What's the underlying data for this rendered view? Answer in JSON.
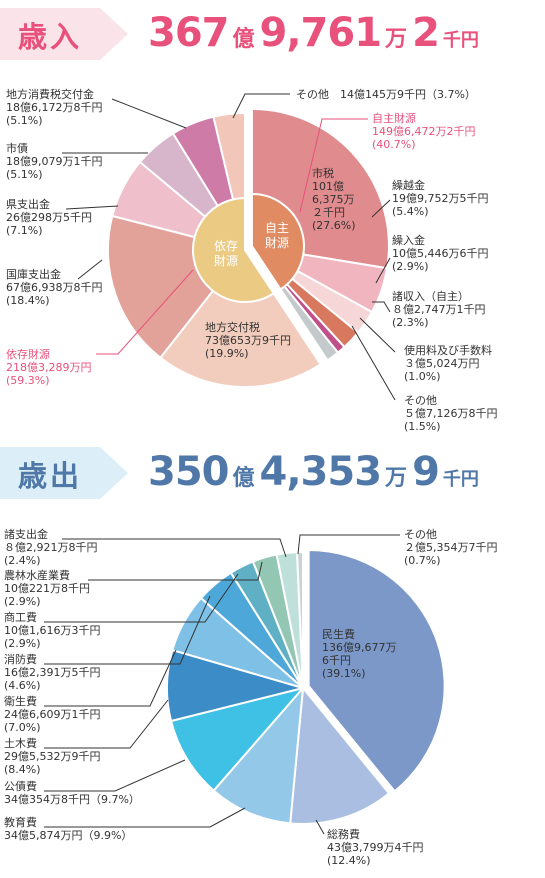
{
  "colors": {
    "revenue_accent": "#e8517b",
    "revenue_tag_bg": "#fbe3ea",
    "expenditure_accent": "#4f78a8",
    "expenditure_tag_bg": "#dceff8"
  },
  "revenue": {
    "tag": "歳入",
    "total": {
      "n1": "367",
      "u1": "億",
      "n2": "9,761",
      "u2": "万",
      "n3": "2",
      "u3": "千円"
    }
  },
  "expenditure": {
    "tag": "歳出",
    "total": {
      "n1": "350",
      "u1": "億",
      "n2": "4,353",
      "u2": "万",
      "n3": "9",
      "u3": "千円"
    }
  },
  "chart_data": [
    {
      "type": "pie",
      "name": "歳入",
      "unit": "%",
      "slices": [
        {
          "label": "市税",
          "value": 27.6,
          "amount": "101億6,375万2千円",
          "group": "自主財源",
          "color": "#e08b8e",
          "lines": [
            "市税",
            "101億",
            "6,375万",
            "２千円",
            "(27.6%)"
          ]
        },
        {
          "label": "繰越金",
          "value": 5.4,
          "amount": "19億9,752万5千円",
          "group": "自主財源",
          "color": "#f0b5be",
          "lines": [
            "繰越金",
            "19億9,752万5千円",
            "(5.4%)"
          ]
        },
        {
          "label": "繰入金",
          "value": 2.9,
          "amount": "10億5,446万6千円",
          "group": "自主財源",
          "color": "#f7d6d8",
          "lines": [
            "繰入金",
            "10億5,446万6千円",
            "(2.9%)"
          ]
        },
        {
          "label": "諸収入（自主）",
          "value": 2.3,
          "amount": "8億2,747万1千円",
          "group": "自主財源",
          "color": "#d8795f",
          "lines": [
            "諸収入（自主）",
            "８億2,747万1千円",
            "(2.3%)"
          ]
        },
        {
          "label": "使用料及び手数料",
          "value": 1.0,
          "amount": "3億5,024万円",
          "group": "自主財源",
          "color": "#c0508a",
          "lines": [
            "使用料及び手数料",
            "３億5,024万円",
            "(1.0%)"
          ]
        },
        {
          "label": "その他",
          "value": 1.5,
          "amount": "5億7,126万8千円",
          "group": "自主財源",
          "color": "#c4c9cc",
          "lines": [
            "その他",
            "５億7,126万8千円",
            "(1.5%)"
          ]
        },
        {
          "label": "地方交付税",
          "value": 19.9,
          "amount": "73億653万9千円",
          "group": "依存財源",
          "color": "#f2cdbd",
          "lines": [
            "地方交付税",
            "73億653万9千円",
            "(19.9%)"
          ]
        },
        {
          "label": "国庫支出金",
          "value": 18.4,
          "amount": "67億6,938万8千円",
          "group": "依存財源",
          "color": "#e2a29a",
          "lines": [
            "国庫支出金",
            "67億6,938万8千円",
            "(18.4%)"
          ]
        },
        {
          "label": "県支出金",
          "value": 7.1,
          "amount": "26億298万5千円",
          "group": "依存財源",
          "color": "#efbfcb",
          "lines": [
            "県支出金",
            "26億298万5千円",
            "(7.1%)"
          ]
        },
        {
          "label": "市債",
          "value": 5.1,
          "amount": "18億9,079万1千円",
          "group": "依存財源",
          "color": "#d7b6cb",
          "lines": [
            "市債",
            "18億9,079万1千円",
            "(5.1%)"
          ]
        },
        {
          "label": "地方消費税交付金",
          "value": 5.1,
          "amount": "18億6,172万8千円",
          "group": "依存財源",
          "color": "#cf7ba8",
          "lines": [
            "地方消費税交付金",
            "18億6,172万8千円",
            "(5.1%)"
          ]
        },
        {
          "label": "その他",
          "value": 3.7,
          "amount": "14億145万9千円",
          "group": "依存財源",
          "color": "#f2c6b9",
          "lines": [
            "その他　14億145万9千円（3.7%）"
          ]
        }
      ],
      "groups": [
        {
          "name": "自主財源",
          "lines": [
            "自主財源",
            "149億6,472万2千円",
            "(40.7%)"
          ],
          "inner": [
            "自主",
            "財源"
          ],
          "color": "#e08b62"
        },
        {
          "name": "依存財源",
          "lines": [
            "依存財源",
            "218億3,289万円",
            "(59.3%)"
          ],
          "inner": [
            "依存",
            "財源"
          ],
          "color": "#ebcb84"
        }
      ]
    },
    {
      "type": "pie",
      "name": "歳出",
      "unit": "%",
      "slices": [
        {
          "label": "民生費",
          "value": 39.1,
          "amount": "136億9,677万6千円",
          "color": "#7b98c8",
          "lines": [
            "民生費",
            "136億9,677万",
            "6千円",
            "(39.1%)"
          ]
        },
        {
          "label": "総務費",
          "value": 12.4,
          "amount": "43億3,799万4千円",
          "color": "#a9bee0",
          "lines": [
            "総務費",
            "43億3,799万4千円",
            "(12.4%)"
          ]
        },
        {
          "label": "教育費",
          "value": 9.9,
          "amount": "34億5,874万円",
          "color": "#93c8e8",
          "lines": [
            "教育費",
            "34億5,874万円（9.9%）"
          ]
        },
        {
          "label": "公債費",
          "value": 9.7,
          "amount": "34億354万8千円",
          "color": "#3fc0e5",
          "lines": [
            "公債費",
            "34億354万8千円（9.7%）"
          ]
        },
        {
          "label": "土木費",
          "value": 8.4,
          "amount": "29億5,532万9千円",
          "color": "#3c8cc8",
          "lines": [
            "土木費",
            "29億5,532万9千円",
            "(8.4%)"
          ]
        },
        {
          "label": "衛生費",
          "value": 7.0,
          "amount": "24億6,609万1千円",
          "color": "#7ec0e6",
          "lines": [
            "衛生費",
            "24億6,609万1千円",
            "(7.0%)"
          ]
        },
        {
          "label": "消防費",
          "value": 4.6,
          "amount": "16億2,391万5千円",
          "color": "#4da7d9",
          "lines": [
            "消防費",
            "16億2,391万5千円",
            "(4.6%)"
          ]
        },
        {
          "label": "商工費",
          "value": 2.9,
          "amount": "10億1,616万3千円",
          "color": "#5fb0c5",
          "lines": [
            "商工費",
            "10億1,616万3千円",
            "(2.9%)"
          ]
        },
        {
          "label": "農林水産業費",
          "value": 2.9,
          "amount": "10億221万8千円",
          "color": "#93c6b3",
          "lines": [
            "農林水産業費",
            "10億221万8千円",
            "(2.9%)"
          ]
        },
        {
          "label": "諸支出金",
          "value": 2.4,
          "amount": "8億2,921万8千円",
          "color": "#bfe0da",
          "lines": [
            "諸支出金",
            "８億2,921万8千円",
            "(2.4%)"
          ]
        },
        {
          "label": "その他",
          "value": 0.7,
          "amount": "2億5,354万7千円",
          "color": "#c9d2d6",
          "lines": [
            "その他",
            "２億5,354万7千円",
            "(0.7%)"
          ]
        }
      ]
    }
  ]
}
